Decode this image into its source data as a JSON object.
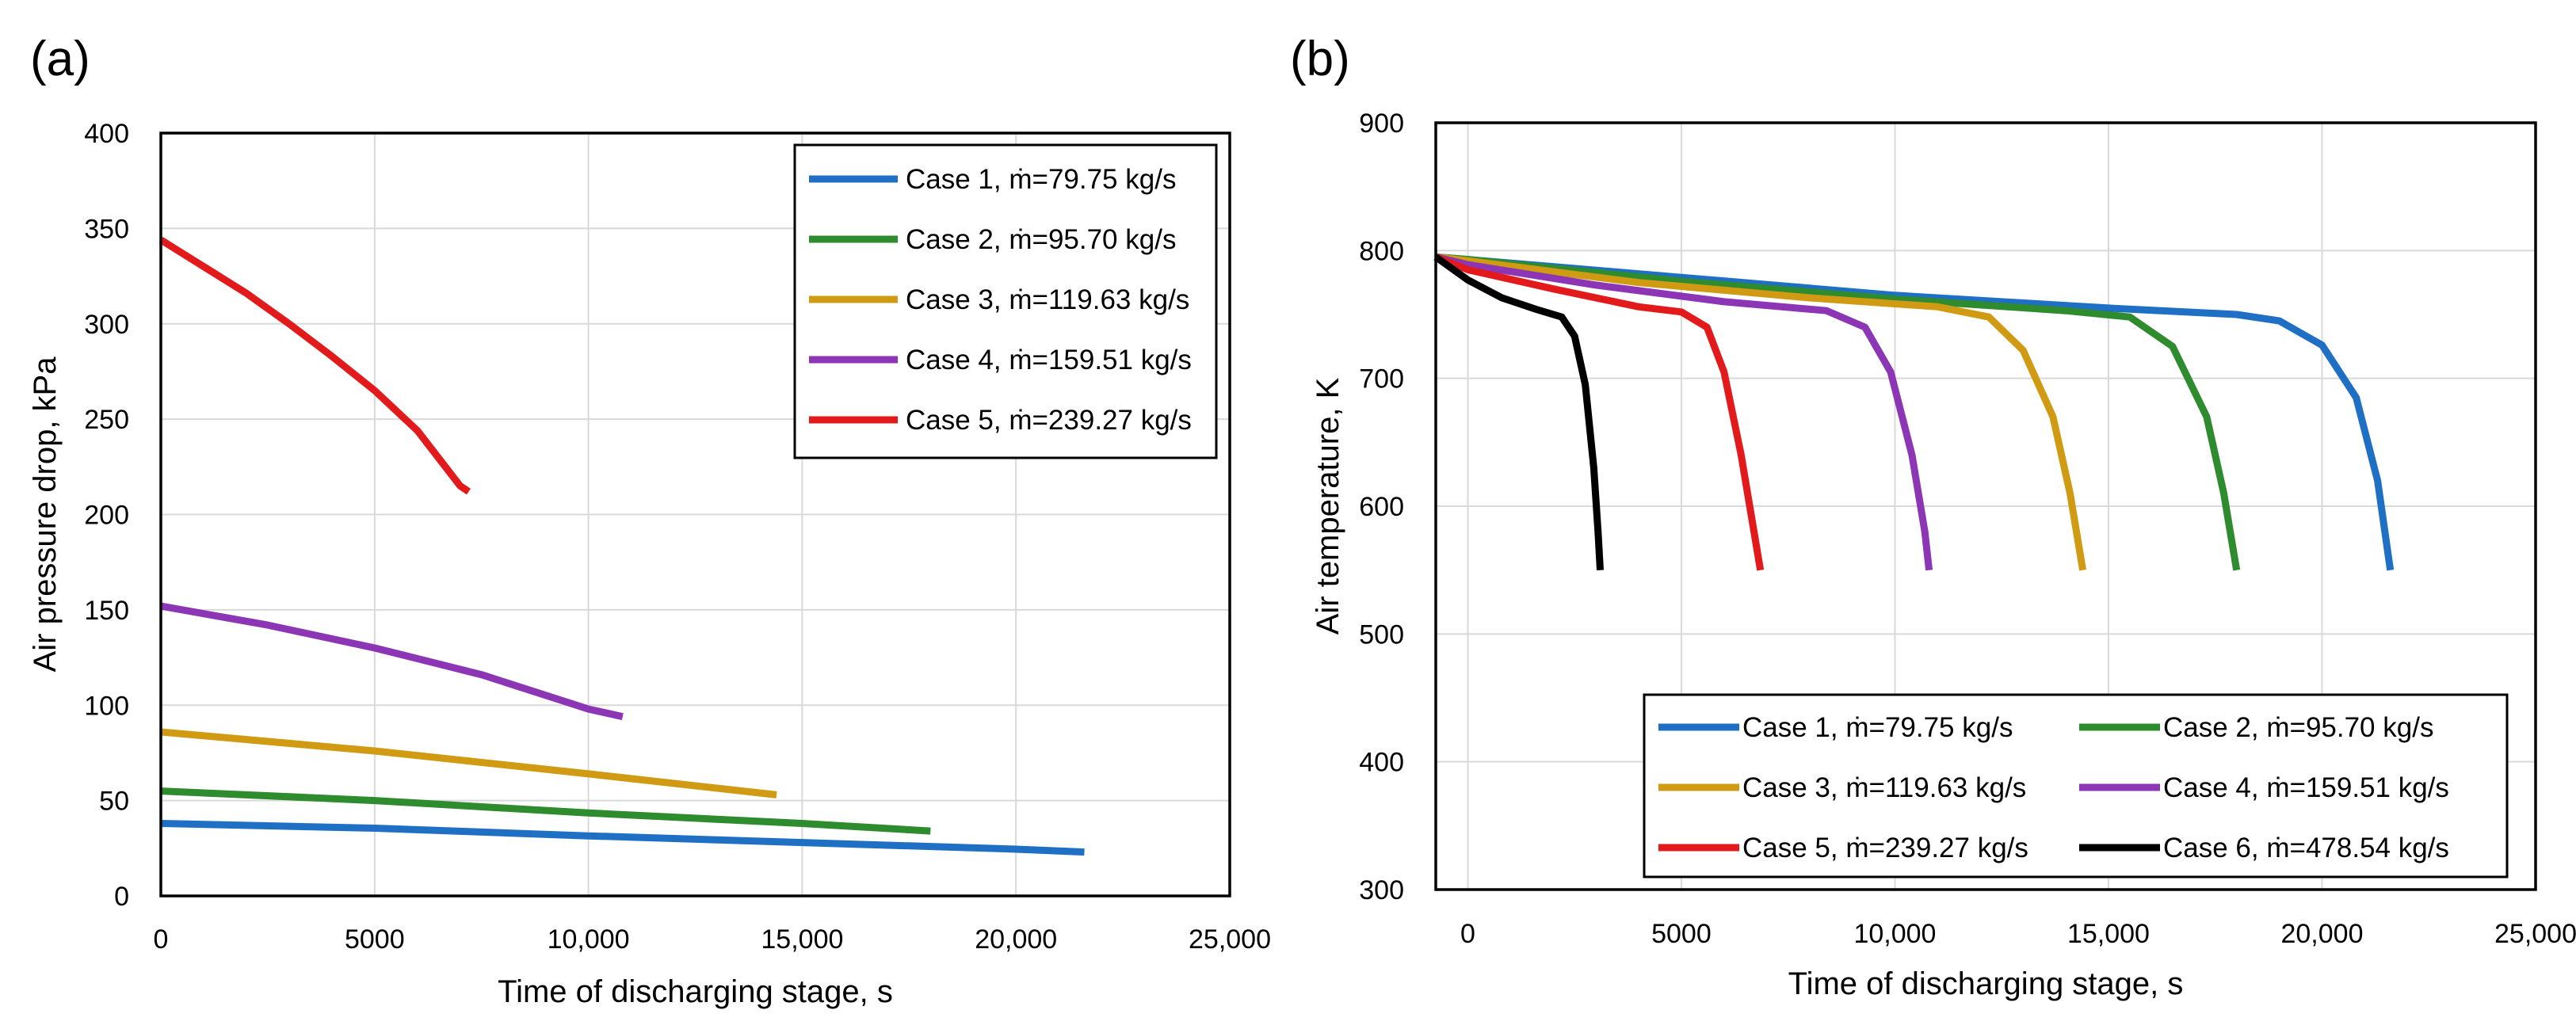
{
  "chart_data": [
    {
      "type": "line",
      "panel_label": "(a)",
      "title": "",
      "xlabel": "Time of discharging stage, s",
      "ylabel": "Air pressure drop, kPa",
      "xlim": [
        0,
        25000
      ],
      "ylim": [
        0,
        400
      ],
      "xticks": [
        0,
        5000,
        10000,
        15000,
        20000,
        25000
      ],
      "xtick_labels": [
        "0",
        "5000",
        "10,000",
        "15,000",
        "20,000",
        "25,000"
      ],
      "yticks": [
        0,
        50,
        100,
        150,
        200,
        250,
        300,
        350,
        400
      ],
      "ytick_labels": [
        "0",
        "50",
        "100",
        "150",
        "200",
        "250",
        "300",
        "350",
        "400"
      ],
      "grid": true,
      "legend_position": "top-right",
      "legend_columns": 1,
      "series": [
        {
          "name": "Case 1, ṁ=79.75 kg/s",
          "color": "#1f6fc4",
          "points": [
            [
              0,
              38
            ],
            [
              5000,
              35.5
            ],
            [
              10000,
              31.5
            ],
            [
              15000,
              28
            ],
            [
              20000,
              24.5
            ],
            [
              21600,
              23
            ]
          ]
        },
        {
          "name": "Case 2, ṁ=95.70 kg/s",
          "color": "#2e8b2e",
          "points": [
            [
              0,
              55
            ],
            [
              5000,
              50
            ],
            [
              10000,
              43.5
            ],
            [
              15000,
              38
            ],
            [
              18000,
              34
            ]
          ]
        },
        {
          "name": "Case 3, ṁ=119.63 kg/s",
          "color": "#d09a12",
          "points": [
            [
              0,
              86
            ],
            [
              5000,
              76
            ],
            [
              10000,
              64
            ],
            [
              14400,
              53
            ]
          ]
        },
        {
          "name": "Case 4, ṁ=159.51 kg/s",
          "color": "#8c35b5",
          "points": [
            [
              0,
              152
            ],
            [
              2500,
              142
            ],
            [
              5000,
              130
            ],
            [
              7500,
              116
            ],
            [
              10000,
              98
            ],
            [
              10800,
              94
            ]
          ]
        },
        {
          "name": "Case 5, ṁ=239.27 kg/s",
          "color": "#e31a1c",
          "points": [
            [
              0,
              344
            ],
            [
              1000,
              330
            ],
            [
              2000,
              316
            ],
            [
              3000,
              300
            ],
            [
              4000,
              283
            ],
            [
              5000,
              265
            ],
            [
              6000,
              244
            ],
            [
              7000,
              215
            ],
            [
              7200,
              212
            ]
          ]
        }
      ]
    },
    {
      "type": "line",
      "panel_label": "(b)",
      "title": "",
      "xlabel": "Time of discharging stage, s",
      "ylabel": "Air temperature, K",
      "xlim": [
        -750,
        25000
      ],
      "ylim": [
        300,
        900
      ],
      "xticks": [
        0,
        5000,
        10000,
        15000,
        20000,
        25000
      ],
      "xtick_labels": [
        "0",
        "5000",
        "10,000",
        "15,000",
        "20,000",
        "25,000"
      ],
      "yticks": [
        300,
        400,
        500,
        600,
        700,
        800,
        900
      ],
      "ytick_labels": [
        "300",
        "400",
        "500",
        "600",
        "700",
        "800",
        "900"
      ],
      "grid": true,
      "legend_position": "bottom-right",
      "legend_columns": 2,
      "series": [
        {
          "name": "Case 1, ṁ=79.75 kg/s",
          "color": "#1f6fc4",
          "points": [
            [
              -750,
              795
            ],
            [
              0,
              793
            ],
            [
              5000,
              779
            ],
            [
              10000,
              765
            ],
            [
              15000,
              755
            ],
            [
              18000,
              750
            ],
            [
              19000,
              745
            ],
            [
              20000,
              726
            ],
            [
              20800,
              685
            ],
            [
              21300,
              620
            ],
            [
              21600,
              550
            ]
          ]
        },
        {
          "name": "Case 2, ṁ=95.70 kg/s",
          "color": "#2e8b2e",
          "points": [
            [
              -750,
              795
            ],
            [
              0,
              793
            ],
            [
              5000,
              776
            ],
            [
              10000,
              762
            ],
            [
              14000,
              753
            ],
            [
              15500,
              748
            ],
            [
              16500,
              725
            ],
            [
              17300,
              670
            ],
            [
              17700,
              610
            ],
            [
              18000,
              550
            ]
          ]
        },
        {
          "name": "Case 3, ṁ=119.63 kg/s",
          "color": "#d09a12",
          "points": [
            [
              -750,
              795
            ],
            [
              0,
              792
            ],
            [
              4000,
              775
            ],
            [
              8000,
              763
            ],
            [
              11000,
              756
            ],
            [
              12200,
              748
            ],
            [
              13000,
              722
            ],
            [
              13700,
              670
            ],
            [
              14100,
              610
            ],
            [
              14400,
              550
            ]
          ]
        },
        {
          "name": "Case 4, ṁ=159.51 kg/s",
          "color": "#8c35b5",
          "points": [
            [
              -750,
              795
            ],
            [
              0,
              789
            ],
            [
              3000,
              773
            ],
            [
              6000,
              760
            ],
            [
              8400,
              753
            ],
            [
              9300,
              740
            ],
            [
              9900,
              705
            ],
            [
              10400,
              640
            ],
            [
              10700,
              580
            ],
            [
              10800,
              550
            ]
          ]
        },
        {
          "name": "Case 5, ṁ=239.27 kg/s",
          "color": "#e31a1c",
          "points": [
            [
              -750,
              795
            ],
            [
              0,
              785
            ],
            [
              2000,
              770
            ],
            [
              4000,
              756
            ],
            [
              5000,
              752
            ],
            [
              5600,
              740
            ],
            [
              6000,
              705
            ],
            [
              6400,
              640
            ],
            [
              6700,
              580
            ],
            [
              6850,
              550
            ]
          ]
        },
        {
          "name": "Case 6, ṁ=478.54 kg/s",
          "color": "#000000",
          "points": [
            [
              -750,
              795
            ],
            [
              0,
              777
            ],
            [
              800,
              763
            ],
            [
              1600,
              754
            ],
            [
              2200,
              748
            ],
            [
              2500,
              733
            ],
            [
              2750,
              695
            ],
            [
              2950,
              630
            ],
            [
              3050,
              580
            ],
            [
              3100,
              550
            ]
          ]
        }
      ]
    }
  ]
}
